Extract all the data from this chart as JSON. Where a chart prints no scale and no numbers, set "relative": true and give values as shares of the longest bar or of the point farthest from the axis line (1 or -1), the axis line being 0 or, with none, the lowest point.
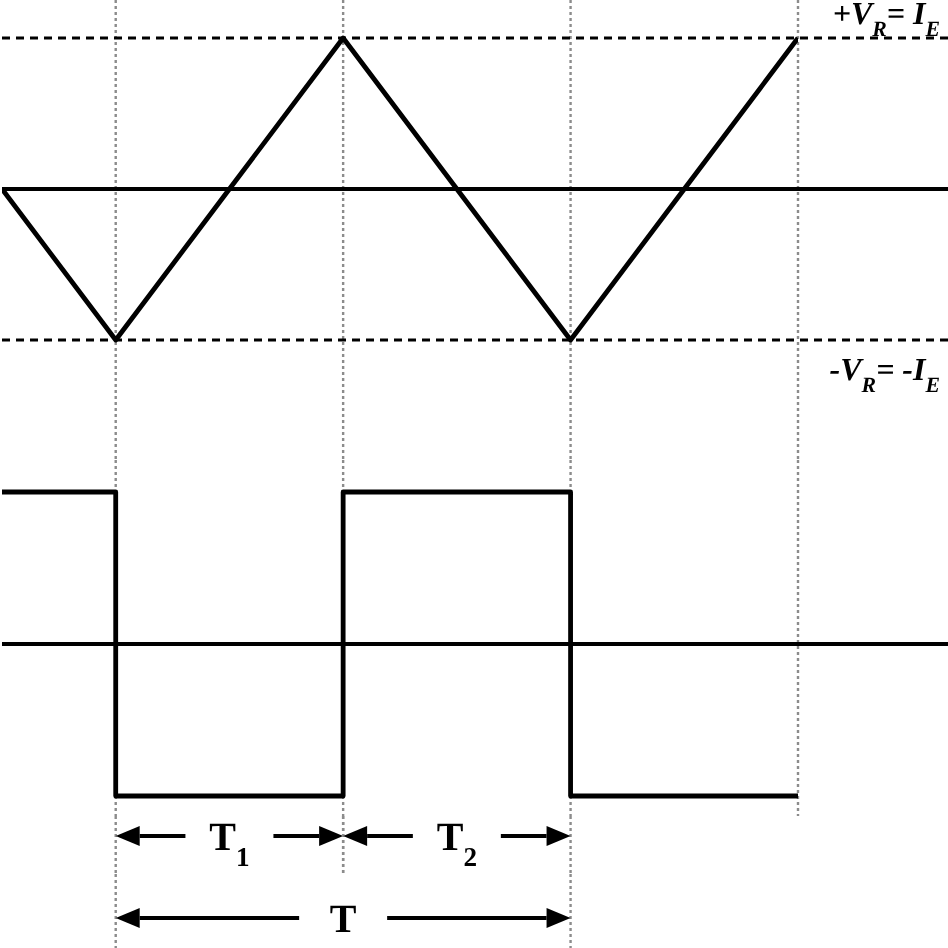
{
  "chart_data": [
    {
      "type": "line",
      "relative": true,
      "categories": [
        null,
        null,
        null,
        null,
        null,
        null,
        null,
        null
      ],
      "values": [
        0,
        -1,
        0,
        1,
        0,
        -1,
        0,
        1
      ],
      "color": "#000000",
      "grid": "x",
      "tick_labels": false,
      "ref_lines": [
        {
          "axis": "y",
          "value": 1,
          "label": "+V$_{R}$= I$_{E}$",
          "line_style": "dashed",
          "color": "#000000"
        },
        {
          "axis": "y",
          "value": -1,
          "label": "-V$_{R}$= -I$_{E}$",
          "line_style": "dashed",
          "color": "#000000"
        }
      ]
    },
    {
      "type": "step",
      "relative": true,
      "categories": [
        null,
        null,
        null,
        null,
        null,
        null,
        null,
        null
      ],
      "values": [
        1,
        -1,
        -1,
        1,
        1,
        -1,
        -1,
        -1
      ],
      "color": "#000000",
      "grid": "x",
      "tick_labels": false,
      "annotations": [
        "T$_{1}$",
        "T$_{2}$",
        "T"
      ]
    }
  ]
}
